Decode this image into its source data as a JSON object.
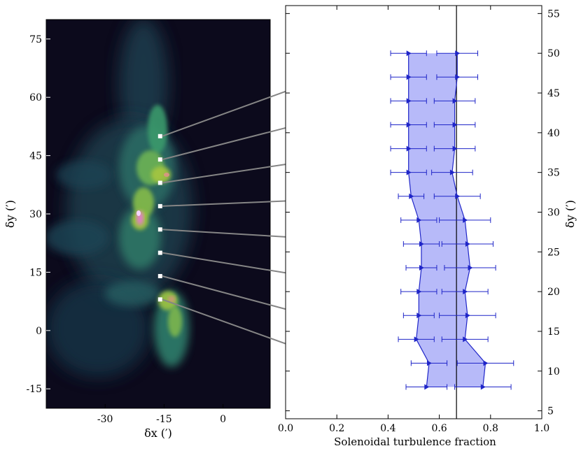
{
  "chart_data": [
    {
      "type": "image",
      "description_labels": {
        "xlabel": "δx (′)",
        "ylabel": "δy (′)"
      },
      "xlim": [
        -45,
        12
      ],
      "ylim": [
        -20,
        80
      ],
      "xticks": [
        -30,
        -15,
        0
      ],
      "yticks": [
        -15,
        0,
        15,
        30,
        45,
        60,
        75
      ],
      "marker_x": -16,
      "marker_y": [
        50,
        44,
        38,
        32,
        26,
        20,
        14,
        8
      ],
      "colors": {
        "background": "#0c0a1c",
        "filament": "#2f7f6c",
        "bright": "#a6c640",
        "peak": "#e47ad0",
        "marker": "#ffffff"
      }
    },
    {
      "type": "area",
      "xlabel": "Solenoidal turbulence fraction",
      "ylabel": "δy (′)",
      "xlim": [
        0.0,
        1.0
      ],
      "ylim": [
        4,
        56
      ],
      "xticks": [
        0.0,
        0.2,
        0.4,
        0.6,
        0.8,
        1.0
      ],
      "xtick_labels": [
        "0.0",
        "0.2",
        "0.4",
        "0.6",
        "0.8",
        "1.0"
      ],
      "yticks": [
        5,
        10,
        15,
        20,
        25,
        30,
        35,
        40,
        45,
        50,
        55
      ],
      "y": [
        50,
        47,
        44,
        41,
        38,
        35,
        32,
        29,
        26,
        23,
        20,
        17,
        14,
        11,
        8
      ],
      "lower": {
        "values": [
          0.48,
          0.48,
          0.48,
          0.48,
          0.48,
          0.48,
          0.49,
          0.52,
          0.53,
          0.53,
          0.52,
          0.52,
          0.51,
          0.56,
          0.55
        ],
        "xerr": [
          0.07,
          0.07,
          0.07,
          0.07,
          0.07,
          0.07,
          0.05,
          0.07,
          0.07,
          0.06,
          0.07,
          0.06,
          0.07,
          0.07,
          0.08
        ]
      },
      "upper": {
        "values": [
          0.67,
          0.67,
          0.66,
          0.66,
          0.66,
          0.65,
          0.67,
          0.7,
          0.71,
          0.72,
          0.7,
          0.71,
          0.7,
          0.78,
          0.77
        ],
        "xerr": [
          0.08,
          0.08,
          0.08,
          0.08,
          0.08,
          0.08,
          0.09,
          0.1,
          0.1,
          0.1,
          0.09,
          0.11,
          0.09,
          0.11,
          0.11
        ]
      },
      "reference_line_x": 0.667,
      "colors": {
        "fill": "#b3b6f9",
        "line": "#1f25c8",
        "reference": "#000000",
        "connector": "#858585"
      }
    }
  ],
  "connectors": [
    {
      "map_y": 50,
      "profile_y": 50,
      "profile_x": 0.41
    },
    {
      "map_y": 44,
      "profile_y": 44,
      "profile_x": 0.41
    },
    {
      "map_y": 38,
      "profile_y": 38,
      "profile_x": 0.41
    },
    {
      "map_y": 32,
      "profile_y": 32,
      "profile_x": 0.44
    },
    {
      "map_y": 26,
      "profile_y": 26,
      "profile_x": 0.46
    },
    {
      "map_y": 20,
      "profile_y": 20,
      "profile_x": 0.45
    },
    {
      "map_y": 14,
      "profile_y": 14,
      "profile_x": 0.44
    },
    {
      "map_y": 8,
      "profile_y": 8,
      "profile_x": 0.47
    }
  ]
}
